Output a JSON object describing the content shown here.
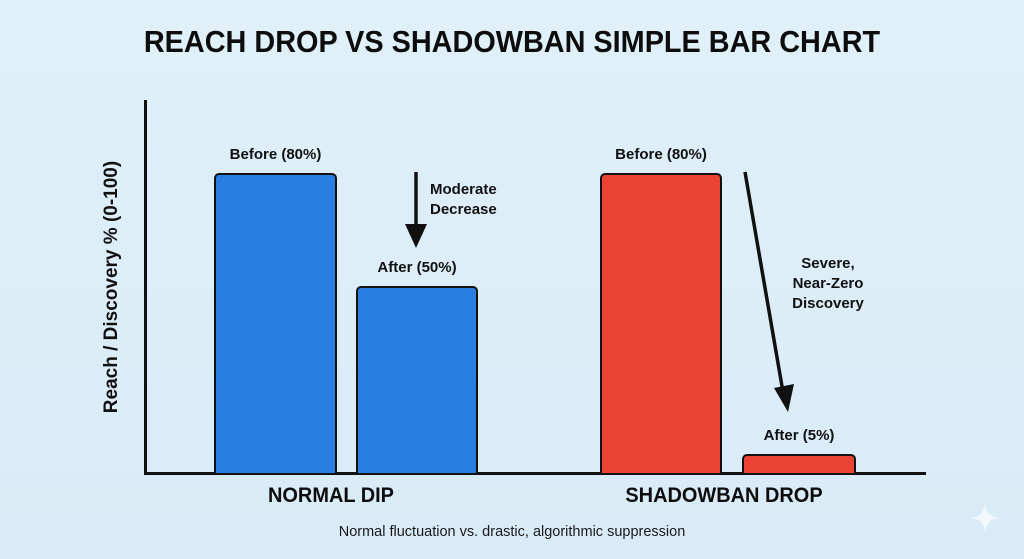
{
  "chart_data": {
    "type": "bar",
    "title": "REACH DROP VS SHADOWBAN SIMPLE BAR CHART",
    "xlabel": "",
    "ylabel": "Reach / Discovery % (0-100)",
    "ylim": [
      0,
      100
    ],
    "grid": false,
    "legend": null,
    "categories": [
      "NORMAL DIP",
      "SHADOWBAN DROP"
    ],
    "series": [
      {
        "name": "Before",
        "values": [
          80,
          80
        ]
      },
      {
        "name": "After",
        "values": [
          50,
          5
        ]
      }
    ],
    "bars": [
      {
        "group": "NORMAL DIP",
        "label": "Before (80%)",
        "value": 80,
        "color": "#2a7de1"
      },
      {
        "group": "NORMAL DIP",
        "label": "After (50%)",
        "value": 50,
        "color": "#2a7de1"
      },
      {
        "group": "SHADOWBAN DROP",
        "label": "Before (80%)",
        "value": 80,
        "color": "#ea4335"
      },
      {
        "group": "SHADOWBAN DROP",
        "label": "After (5%)",
        "value": 5,
        "color": "#ea4335"
      }
    ],
    "annotations": [
      {
        "group": "NORMAL DIP",
        "text_lines": [
          "Moderate",
          "Decrease"
        ],
        "arrow": "down"
      },
      {
        "group": "SHADOWBAN DROP",
        "text_lines": [
          "Severe,",
          "Near-Zero",
          "Discovery"
        ],
        "arrow": "down-diagonal"
      }
    ],
    "caption": "Normal fluctuation vs. drastic, algorithmic suppression"
  },
  "colors": {
    "normal": "#2a7de1",
    "shadowban": "#ea4335",
    "axis": "#111111",
    "background": "#dcedf8"
  },
  "icons": {
    "watermark": "sparkle-icon"
  }
}
